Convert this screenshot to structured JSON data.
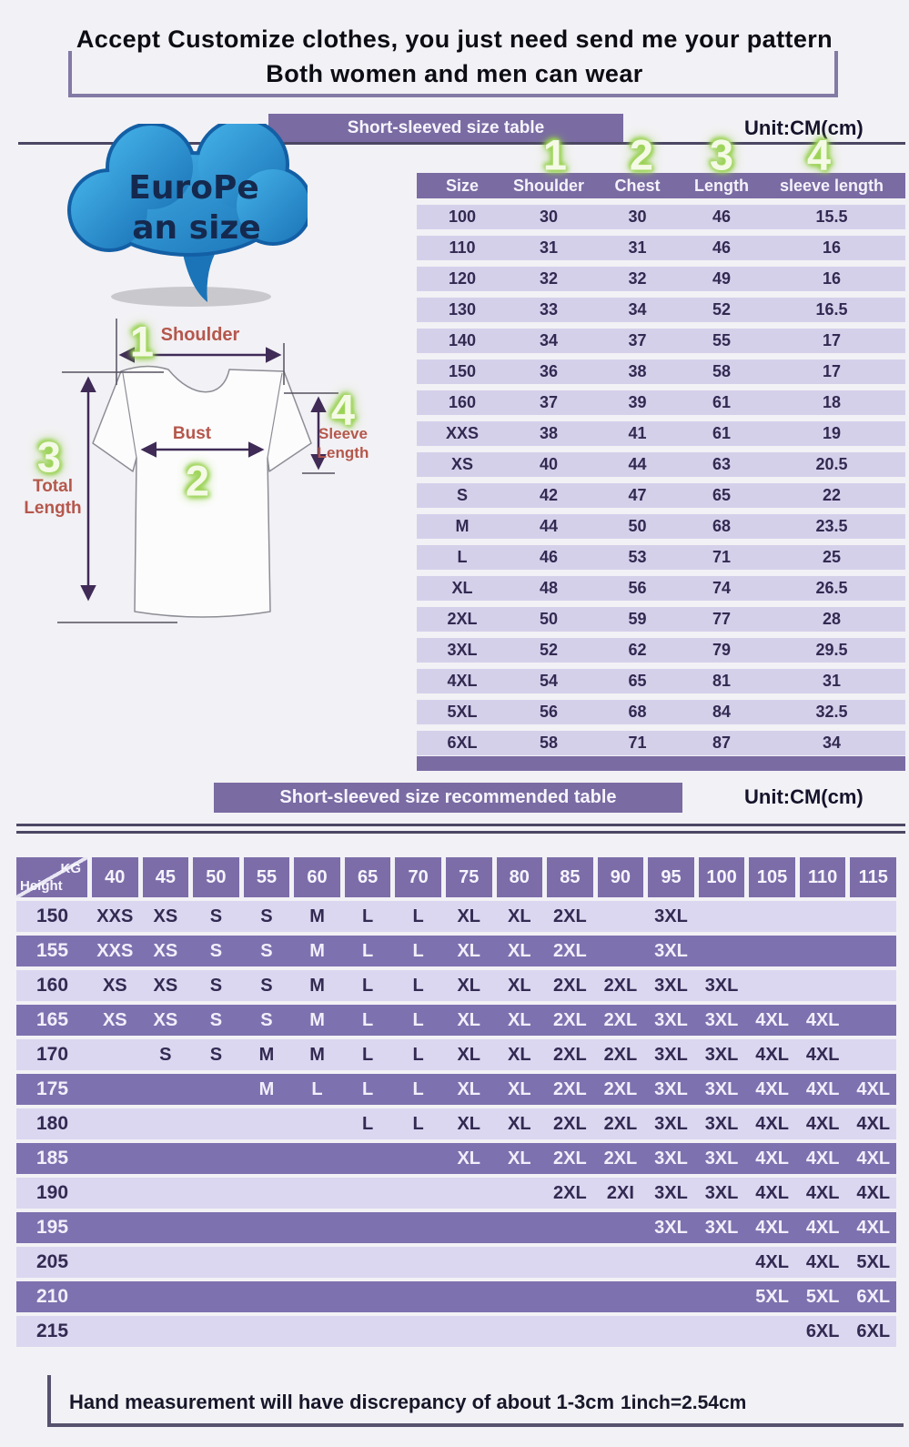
{
  "header": {
    "title_line1": "Accept Customize clothes, you just need send me your pattern",
    "title_line2": "Both women and men can wear"
  },
  "european_size_label": {
    "line1": "EuroPe",
    "line2": "an size"
  },
  "diagram": {
    "markers": {
      "m1": "1",
      "m2": "2",
      "m3": "3",
      "m4": "4"
    },
    "labels": {
      "shoulder": "Shoulder",
      "bust": "Bust",
      "total_line1": "Total",
      "total_line2": "Length",
      "sleeve_line1": "Sleeve",
      "sleeve_line2": "Length"
    }
  },
  "size_table": {
    "banner": "Short-sleeved size  table",
    "unit": "Unit:CM(cm)",
    "markers": [
      "1",
      "2",
      "3",
      "4"
    ],
    "columns": [
      "Size",
      "Shoulder",
      "Chest",
      "Length",
      "sleeve length"
    ],
    "rows": [
      [
        "100",
        "30",
        "30",
        "46",
        "15.5"
      ],
      [
        "110",
        "31",
        "31",
        "46",
        "16"
      ],
      [
        "120",
        "32",
        "32",
        "49",
        "16"
      ],
      [
        "130",
        "33",
        "34",
        "52",
        "16.5"
      ],
      [
        "140",
        "34",
        "37",
        "55",
        "17"
      ],
      [
        "150",
        "36",
        "38",
        "58",
        "17"
      ],
      [
        "160",
        "37",
        "39",
        "61",
        "18"
      ],
      [
        "XXS",
        "38",
        "41",
        "61",
        "19"
      ],
      [
        "XS",
        "40",
        "44",
        "63",
        "20.5"
      ],
      [
        "S",
        "42",
        "47",
        "65",
        "22"
      ],
      [
        "M",
        "44",
        "50",
        "68",
        "23.5"
      ],
      [
        "L",
        "46",
        "53",
        "71",
        "25"
      ],
      [
        "XL",
        "48",
        "56",
        "74",
        "26.5"
      ],
      [
        "2XL",
        "50",
        "59",
        "77",
        "28"
      ],
      [
        "3XL",
        "52",
        "62",
        "79",
        "29.5"
      ],
      [
        "4XL",
        "54",
        "65",
        "81",
        "31"
      ],
      [
        "5XL",
        "56",
        "68",
        "84",
        "32.5"
      ],
      [
        "6XL",
        "58",
        "71",
        "87",
        "34"
      ]
    ]
  },
  "recommend_table": {
    "banner": "Short-sleeved size recommended table",
    "unit": "Unit:CM(cm)",
    "corner": {
      "top_right": "KG",
      "bottom_left": "Height"
    },
    "weight_columns": [
      "40",
      "45",
      "50",
      "55",
      "60",
      "65",
      "70",
      "75",
      "80",
      "85",
      "90",
      "95",
      "100",
      "105",
      "110",
      "115"
    ],
    "rows": [
      {
        "height": "150",
        "shade": "light",
        "cells": [
          "XXS",
          "XS",
          "S",
          "S",
          "M",
          "L",
          "L",
          "XL",
          "XL",
          "2XL",
          "",
          "3XL",
          "",
          "",
          "",
          ""
        ]
      },
      {
        "height": "155",
        "shade": "dark",
        "cells": [
          "XXS",
          "XS",
          "S",
          "S",
          "M",
          "L",
          "L",
          "XL",
          "XL",
          "2XL",
          "",
          "3XL",
          "",
          "",
          "",
          ""
        ]
      },
      {
        "height": "160",
        "shade": "light",
        "cells": [
          "XS",
          "XS",
          "S",
          "S",
          "M",
          "L",
          "L",
          "XL",
          "XL",
          "2XL",
          "2XL",
          "3XL",
          "3XL",
          "",
          "",
          ""
        ]
      },
      {
        "height": "165",
        "shade": "dark",
        "cells": [
          "XS",
          "XS",
          "S",
          "S",
          "M",
          "L",
          "L",
          "XL",
          "XL",
          "2XL",
          "2XL",
          "3XL",
          "3XL",
          "4XL",
          "4XL",
          ""
        ]
      },
      {
        "height": "170",
        "shade": "light",
        "cells": [
          "",
          "S",
          "S",
          "M",
          "M",
          "L",
          "L",
          "XL",
          "XL",
          "2XL",
          "2XL",
          "3XL",
          "3XL",
          "4XL",
          "4XL",
          ""
        ]
      },
      {
        "height": "175",
        "shade": "dark",
        "cells": [
          "",
          "",
          "",
          "M",
          "L",
          "L",
          "L",
          "XL",
          "XL",
          "2XL",
          "2XL",
          "3XL",
          "3XL",
          "4XL",
          "4XL",
          "4XL"
        ]
      },
      {
        "height": "180",
        "shade": "light",
        "cells": [
          "",
          "",
          "",
          "",
          "",
          "L",
          "L",
          "XL",
          "XL",
          "2XL",
          "2XL",
          "3XL",
          "3XL",
          "4XL",
          "4XL",
          "4XL"
        ]
      },
      {
        "height": "185",
        "shade": "dark",
        "cells": [
          "",
          "",
          "",
          "",
          "",
          "",
          "",
          "XL",
          "XL",
          "2XL",
          "2XL",
          "3XL",
          "3XL",
          "4XL",
          "4XL",
          "4XL"
        ]
      },
      {
        "height": "190",
        "shade": "light",
        "cells": [
          "",
          "",
          "",
          "",
          "",
          "",
          "",
          "",
          "",
          "2XL",
          "2XI",
          "3XL",
          "3XL",
          "4XL",
          "4XL",
          "4XL"
        ]
      },
      {
        "height": "195",
        "shade": "dark",
        "cells": [
          "",
          "",
          "",
          "",
          "",
          "",
          "",
          "",
          "",
          "",
          "",
          "3XL",
          "3XL",
          "4XL",
          "4XL",
          "4XL"
        ]
      },
      {
        "height": "205",
        "shade": "light",
        "cells": [
          "",
          "",
          "",
          "",
          "",
          "",
          "",
          "",
          "",
          "",
          "",
          "",
          "",
          "4XL",
          "4XL",
          "5XL"
        ]
      },
      {
        "height": "210",
        "shade": "dark",
        "cells": [
          "",
          "",
          "",
          "",
          "",
          "",
          "",
          "",
          "",
          "",
          "",
          "",
          "",
          "5XL",
          "5XL",
          "6XL"
        ]
      },
      {
        "height": "215",
        "shade": "light",
        "cells": [
          "",
          "",
          "",
          "",
          "",
          "",
          "",
          "",
          "",
          "",
          "",
          "",
          "",
          "",
          "6XL",
          "6XL"
        ]
      }
    ]
  },
  "footer": {
    "note": "Hand measurement will have discrepancy of about  1-3cm",
    "conversion": "1inch=2.54cm"
  },
  "colors": {
    "banner_purple": "#7a6ba3",
    "row_light": "#d5d0ea",
    "row_light2": "#dbd7f0",
    "row_dark": "#7e71af",
    "text_navy": "#332a52",
    "label_red": "#b5574c",
    "glow_green": "#93cf49",
    "cloud_blue": "#2b96d8",
    "line_dark": "#4b4763"
  }
}
